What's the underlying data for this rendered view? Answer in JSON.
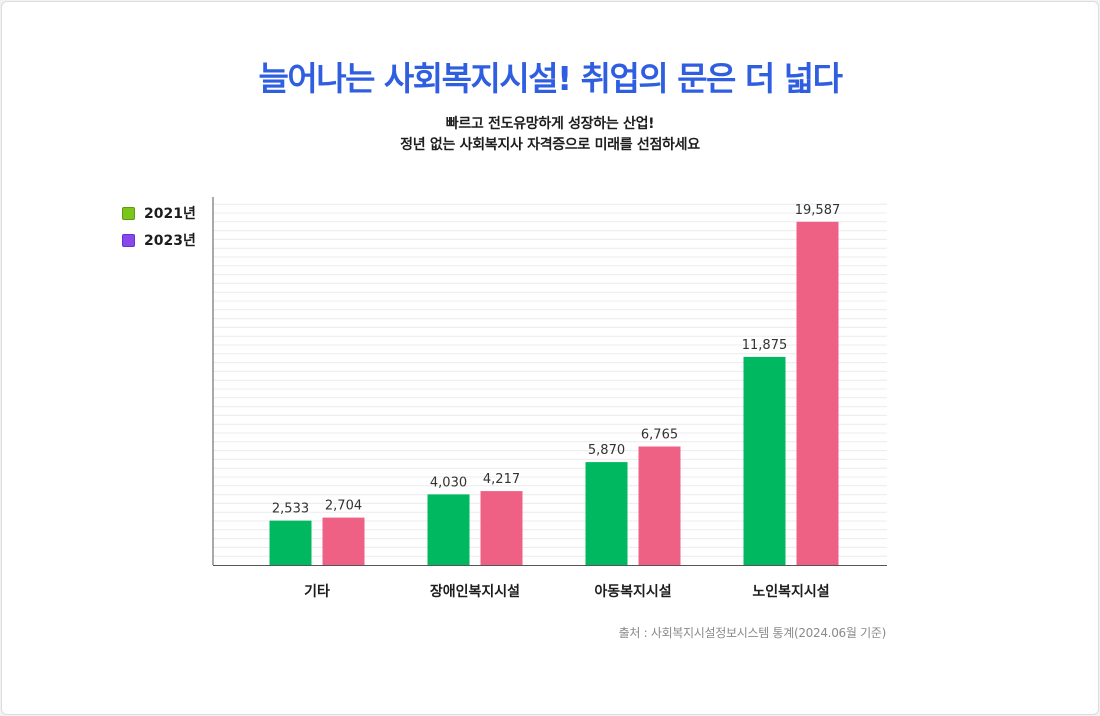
{
  "title": "늘어나는 사회복지시설! 취업의 문은 더 넓다",
  "subtitle_lines": [
    "빠르고 전도유망하게 성장하는 산업!",
    "정년 없는 사회복지사 자격증으로 미래를 선점하세요"
  ],
  "source": "출처 : 사회복지시설정보시스템 통계(2024.06월 기준)",
  "legend": [
    {
      "label": "2021년",
      "color": "#7cc51c"
    },
    {
      "label": "2023년",
      "color": "#8848ec"
    }
  ],
  "chart_data": {
    "type": "bar",
    "title": "늘어나는 사회복지시설! 취업의 문은 더 넓다",
    "xlabel": "",
    "ylabel": "",
    "ylim": [
      0,
      21000
    ],
    "grid": true,
    "legend_position": "top-left",
    "categories": [
      "기타",
      "장애인복지시설",
      "아동복지시설",
      "노인복지시설"
    ],
    "series": [
      {
        "name": "2021년",
        "color": "#00b85f",
        "values": [
          2533,
          4030,
          5870,
          11875
        ],
        "labels": [
          "2,533",
          "4,030",
          "5,870",
          "11,875"
        ]
      },
      {
        "name": "2023년",
        "color": "#ee6184",
        "values": [
          2704,
          4217,
          6765,
          19587
        ],
        "labels": [
          "2,704",
          "4,217",
          "6,765",
          "19,587"
        ]
      }
    ]
  }
}
